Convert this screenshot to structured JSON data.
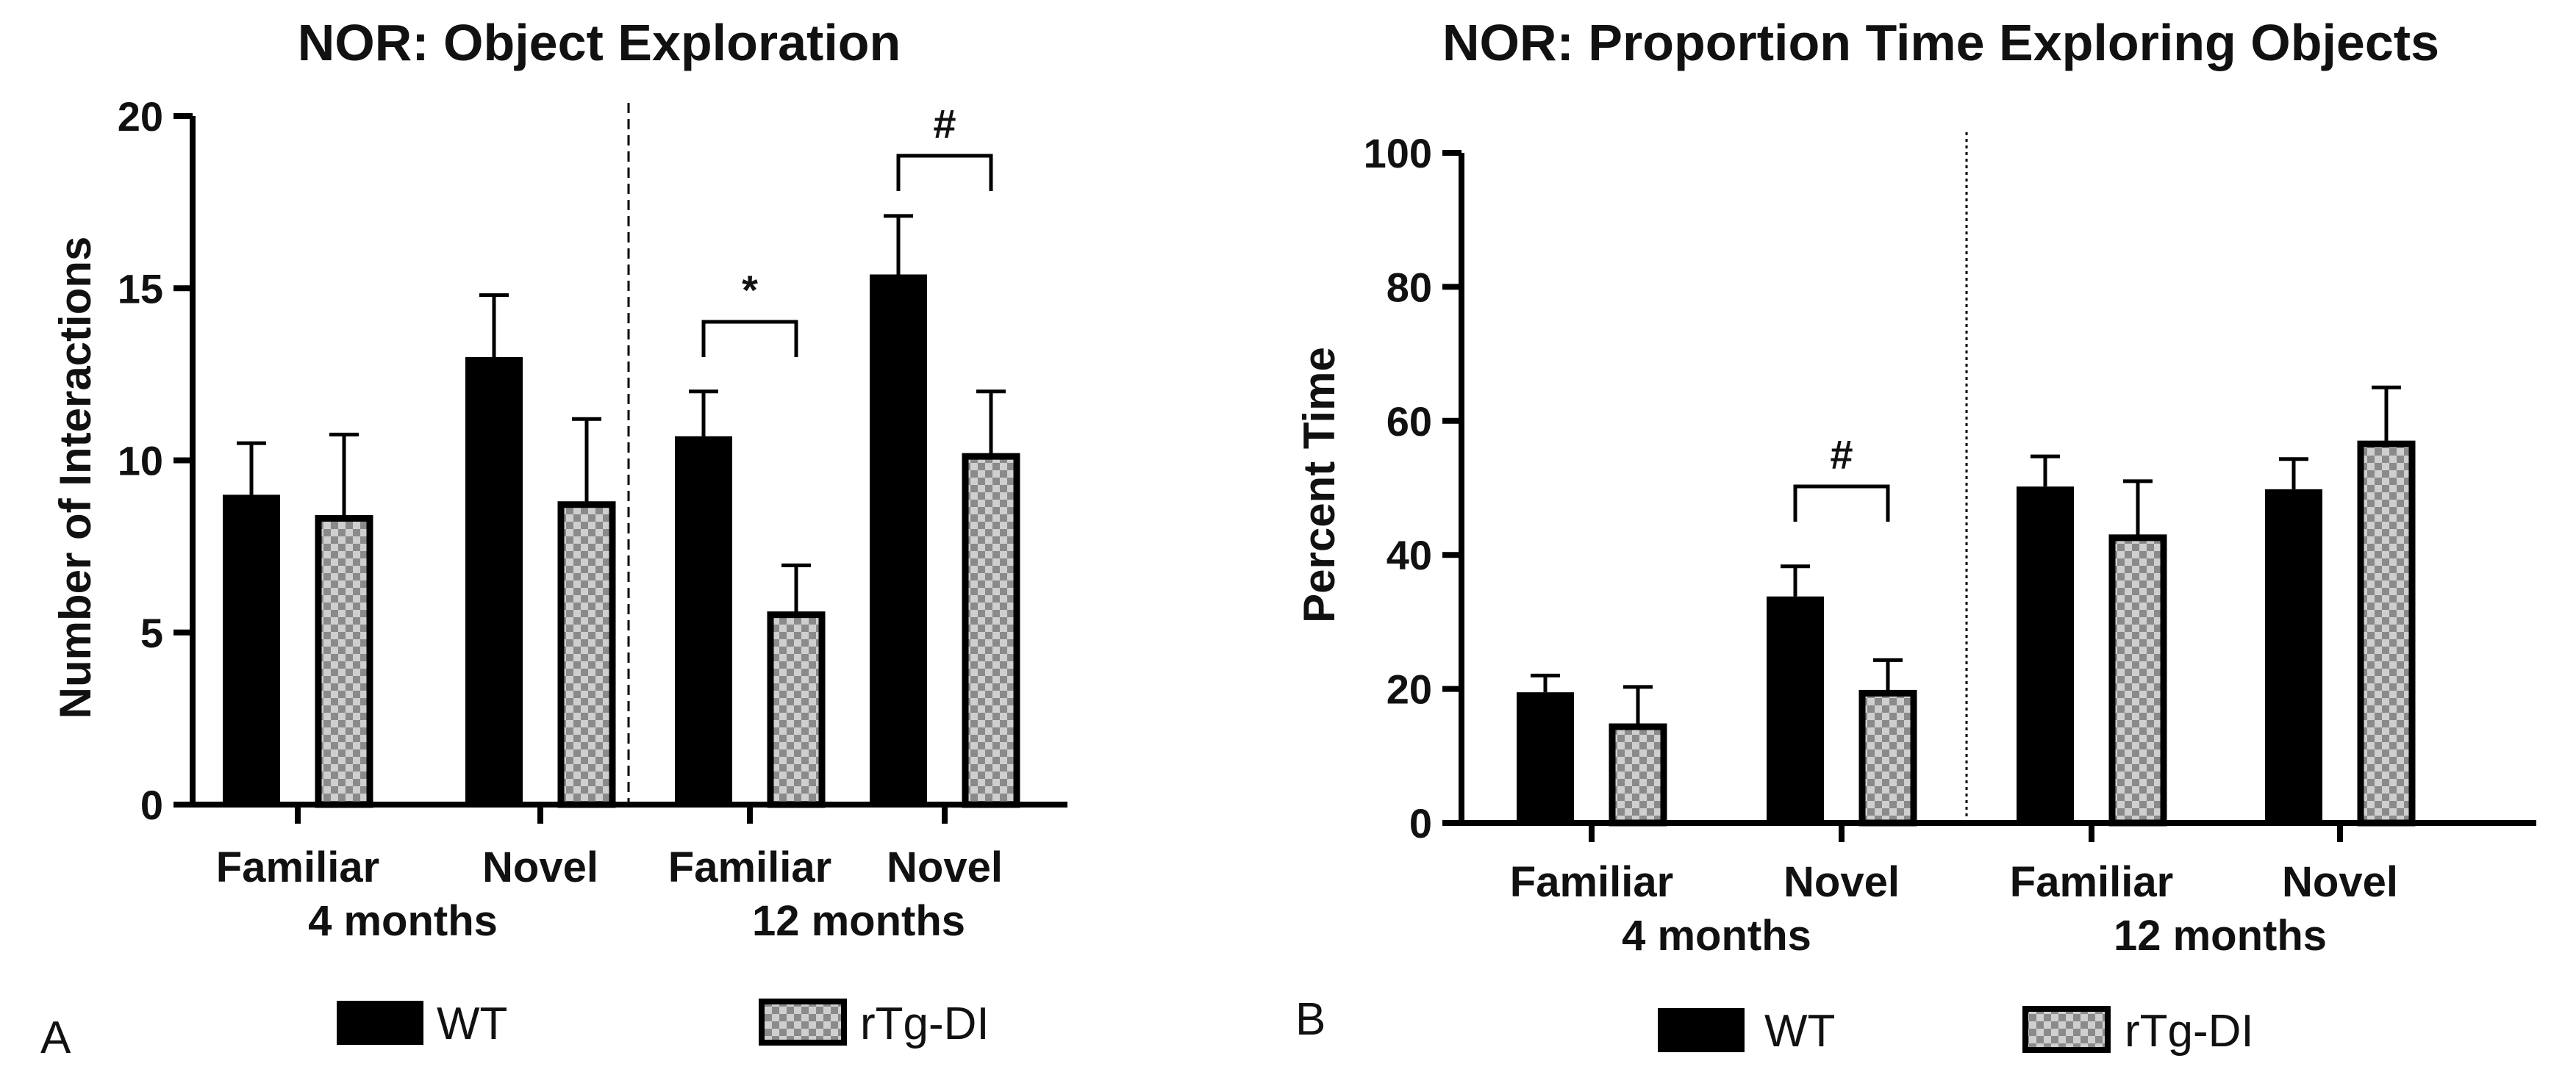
{
  "colors": {
    "wt": "#000000",
    "rtg_check_light": "#cfcfcf",
    "rtg_check_dark": "#8a8a8a",
    "axis": "#000000"
  },
  "legend": {
    "wt": "WT",
    "rtg": "rTg-DI"
  },
  "chart_data": [
    {
      "type": "bar",
      "panel": "A",
      "title": "NOR: Object Exploration",
      "ylabel": "Number of Interactions",
      "ylim": [
        0,
        20
      ],
      "yticks": [
        0,
        5,
        10,
        15,
        20
      ],
      "categories": [
        "Familiar",
        "Novel",
        "Familiar",
        "Novel"
      ],
      "group_labels": [
        "4 months",
        "12 months"
      ],
      "series": [
        {
          "name": "WT",
          "values": [
            9.0,
            13.0,
            10.7,
            15.4
          ],
          "errors": [
            1.5,
            1.8,
            1.3,
            1.7
          ]
        },
        {
          "name": "rTg-DI",
          "values": [
            8.4,
            8.8,
            5.6,
            10.2
          ],
          "errors": [
            2.35,
            2.4,
            1.35,
            1.8
          ]
        }
      ],
      "significance": [
        {
          "category": 2,
          "label": "*"
        },
        {
          "category": 3,
          "label": "#"
        }
      ],
      "divider": "dashed"
    },
    {
      "type": "bar",
      "panel": "B",
      "title": "NOR: Proportion Time Exploring Objects",
      "ylabel": "Percent Time",
      "ylim": [
        0,
        100
      ],
      "yticks": [
        0,
        20,
        40,
        60,
        80,
        100
      ],
      "categories": [
        "Familiar",
        "Novel",
        "Familiar",
        "Novel"
      ],
      "group_labels": [
        "4 months",
        "12 months"
      ],
      "series": [
        {
          "name": "WT",
          "values": [
            19.5,
            33.8,
            50.2,
            49.8
          ],
          "errors": [
            2.5,
            4.5,
            4.5,
            4.5
          ]
        },
        {
          "name": "rTg-DI",
          "values": [
            14.8,
            19.8,
            43.0,
            57.0
          ],
          "errors": [
            5.5,
            4.5,
            8.0,
            8.0
          ]
        }
      ],
      "significance": [
        {
          "category": 1,
          "label": "#"
        }
      ],
      "divider": "dotted"
    }
  ]
}
